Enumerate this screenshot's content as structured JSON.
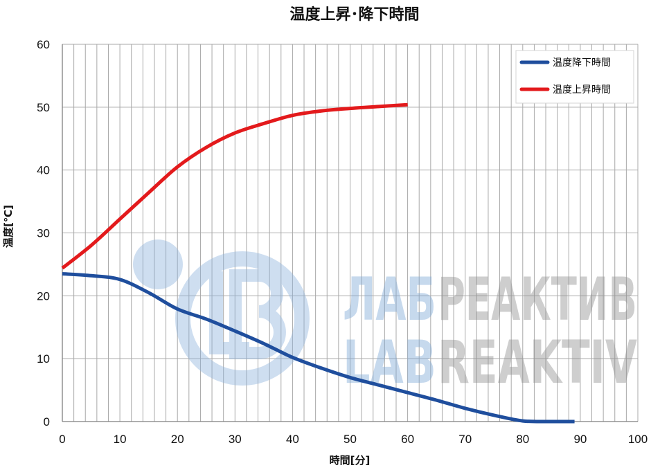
{
  "chart_data": {
    "type": "line",
    "title": "温度上昇･降下時間",
    "xlabel": "時間[分]",
    "ylabel": "温度[℃]",
    "xlim": [
      0,
      100
    ],
    "ylim": [
      0,
      60
    ],
    "xticks": [
      0,
      10,
      20,
      30,
      40,
      50,
      60,
      70,
      80,
      90,
      100
    ],
    "yticks": [
      0,
      10,
      20,
      30,
      40,
      50,
      60
    ],
    "grid": {
      "show": true,
      "x_step": 2,
      "y_step": 10
    },
    "legend_position": "top-right",
    "series": [
      {
        "name": "温度降下時間",
        "color": "#1f4e9d",
        "x": [
          0,
          5,
          10,
          15,
          20,
          25,
          30,
          35,
          40,
          45,
          50,
          55,
          60,
          65,
          70,
          75,
          80,
          85,
          89
        ],
        "y": [
          23.5,
          23.2,
          22.6,
          20.5,
          17.9,
          16.3,
          14.4,
          12.4,
          10.2,
          8.5,
          7.0,
          5.8,
          4.6,
          3.4,
          2.1,
          1.0,
          0.1,
          0.0,
          0.0
        ]
      },
      {
        "name": "温度上昇時間",
        "color": "#e31a1c",
        "x": [
          0,
          5,
          10,
          15,
          20,
          25,
          30,
          35,
          40,
          45,
          50,
          55,
          60
        ],
        "y": [
          24.4,
          28.0,
          32.2,
          36.4,
          40.5,
          43.6,
          45.9,
          47.4,
          48.7,
          49.4,
          49.8,
          50.1,
          50.4
        ]
      }
    ]
  },
  "watermark": {
    "line1": [
      "ЛАБ",
      "РЕАКТИВ"
    ],
    "line2": [
      "LAB",
      "REAKTIV"
    ],
    "accent_color": "#7aa6d6",
    "grey_color": "#8c8c8c"
  }
}
